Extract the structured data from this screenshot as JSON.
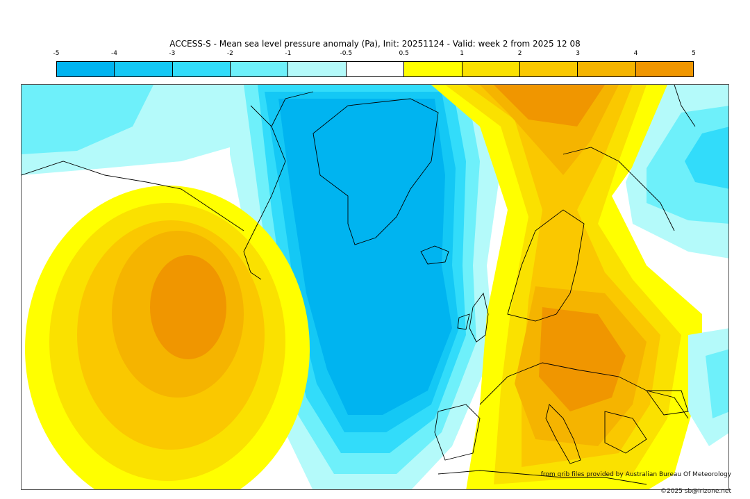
{
  "title": "ACCESS-S - Mean sea level pressure anomaly (Pa), Init: 20251124 - Valid: week 2 from 2025 12 08",
  "colorbar": {
    "ticks": [
      "-5",
      "-4",
      "-3",
      "-2",
      "-1",
      "-0.5",
      "0.5",
      "1",
      "2",
      "3",
      "4",
      "5"
    ],
    "colors": [
      "#00b4f0",
      "#14c8f5",
      "#32dcfa",
      "#6ef0fa",
      "#b4fafa",
      "#ffffff",
      "#ffff00",
      "#fae100",
      "#fac800",
      "#f5b400",
      "#f09600"
    ]
  },
  "credit": "from grib files provided by Australian Bureau Of Meteorology",
  "copyright": "©2025 sb@irizone.net"
}
